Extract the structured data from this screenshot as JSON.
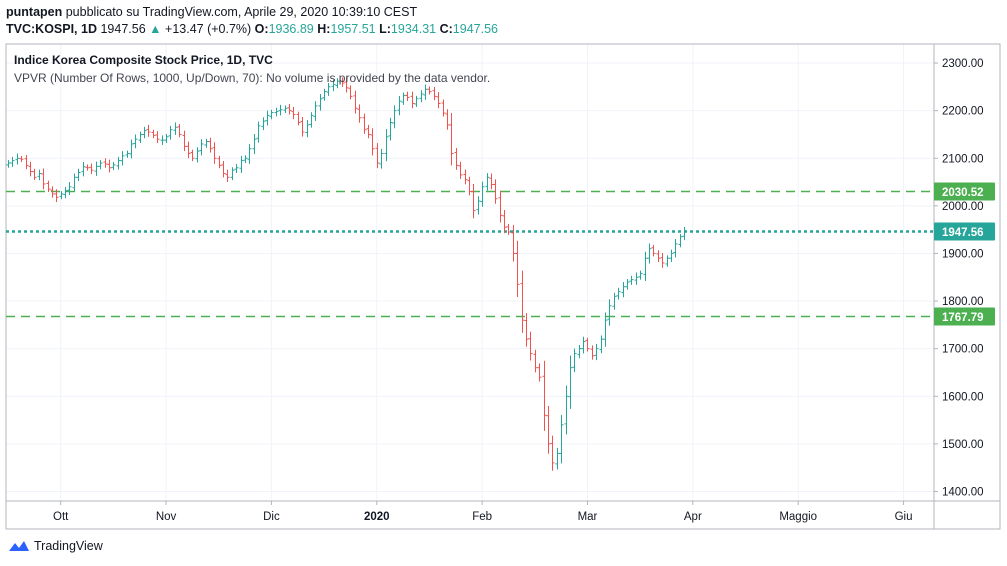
{
  "header": {
    "user": "puntapen",
    "published_text": "pubblicato su TradingView.com, Aprile 29, 2020 10:39:10 CEST",
    "symbol": "TVC:KOSPI, 1D",
    "last": "1947.56",
    "change": "+13.47 (+0.7%)",
    "o_label": "O:",
    "o": "1936.89",
    "h_label": "H:",
    "h": "1957.51",
    "l_label": "L:",
    "l": "1934.31",
    "c_label": "C:",
    "c": "1947.56"
  },
  "legend": {
    "title": "Indice Korea Composite Stock Price, 1D, TVC",
    "indicator": "VPVR (Number Of Rows, 1000, Up/Down, 70): No volume is provided by the data vendor."
  },
  "footer": {
    "brand": "TradingView"
  },
  "colors": {
    "up": "#26a69a",
    "down": "#ef5350",
    "level": "#4caf50",
    "last": "#26a69a",
    "text": "#131722"
  },
  "chart_data": {
    "type": "ohlc",
    "title": "Indice Korea Composite Stock Price, 1D, TVC",
    "ylim": [
      1380,
      2340
    ],
    "y_ticks": [
      1400,
      1500,
      1600,
      1700,
      1800,
      1900,
      2000,
      2100,
      2200,
      2300
    ],
    "y_tick_labels": [
      "1400.00",
      "1500.00",
      "1600.00",
      "1700.00",
      "1800.00",
      "1900.00",
      "2000.00",
      "2100.00",
      "2200.00",
      "2300.00"
    ],
    "x_labels": [
      "Ott",
      "Nov",
      "Dic",
      "2020",
      "Feb",
      "Mar",
      "Apr",
      "Maggio",
      "Giu"
    ],
    "x_label_index": [
      12,
      36,
      60,
      84,
      108,
      132,
      156,
      180,
      204
    ],
    "x_label_bold": [
      false,
      false,
      false,
      true,
      false,
      false,
      false,
      false,
      false
    ],
    "horizontal_levels": [
      {
        "value": 2030.52,
        "label": "2030.52",
        "style": "dashed",
        "color": "#4caf50"
      },
      {
        "value": 1767.79,
        "label": "1767.79",
        "style": "dashed",
        "color": "#4caf50"
      },
      {
        "value": 1947.56,
        "label": "1947.56",
        "style": "dotted",
        "color": "#26a69a"
      }
    ],
    "closes": [
      2090,
      2095,
      2100,
      2098,
      2085,
      2072,
      2060,
      2068,
      2046,
      2035,
      2025,
      2018,
      2025,
      2032,
      2040,
      2060,
      2070,
      2082,
      2080,
      2075,
      2083,
      2090,
      2088,
      2080,
      2086,
      2095,
      2105,
      2110,
      2130,
      2140,
      2150,
      2158,
      2155,
      2148,
      2140,
      2138,
      2145,
      2160,
      2165,
      2150,
      2125,
      2110,
      2100,
      2115,
      2130,
      2135,
      2120,
      2100,
      2085,
      2068,
      2060,
      2075,
      2080,
      2095,
      2100,
      2120,
      2140,
      2168,
      2178,
      2190,
      2196,
      2198,
      2202,
      2205,
      2200,
      2192,
      2175,
      2155,
      2170,
      2190,
      2210,
      2225,
      2240,
      2250,
      2255,
      2262,
      2258,
      2248,
      2230,
      2205,
      2185,
      2160,
      2150,
      2120,
      2090,
      2110,
      2145,
      2175,
      2200,
      2220,
      2232,
      2228,
      2215,
      2225,
      2235,
      2245,
      2240,
      2230,
      2215,
      2195,
      2170,
      2110,
      2085,
      2065,
      2055,
      2030,
      1990,
      2010,
      2040,
      2060,
      2045,
      2015,
      1980,
      1955,
      1945,
      1900,
      1835,
      1760,
      1720,
      1690,
      1660,
      1640,
      1560,
      1500,
      1460,
      1480,
      1540,
      1600,
      1660,
      1690,
      1700,
      1715,
      1700,
      1685,
      1700,
      1720,
      1760,
      1790,
      1810,
      1820,
      1830,
      1840,
      1845,
      1850,
      1858,
      1890,
      1910,
      1900,
      1890,
      1880,
      1890,
      1900,
      1920,
      1935,
      1947.56
    ]
  }
}
